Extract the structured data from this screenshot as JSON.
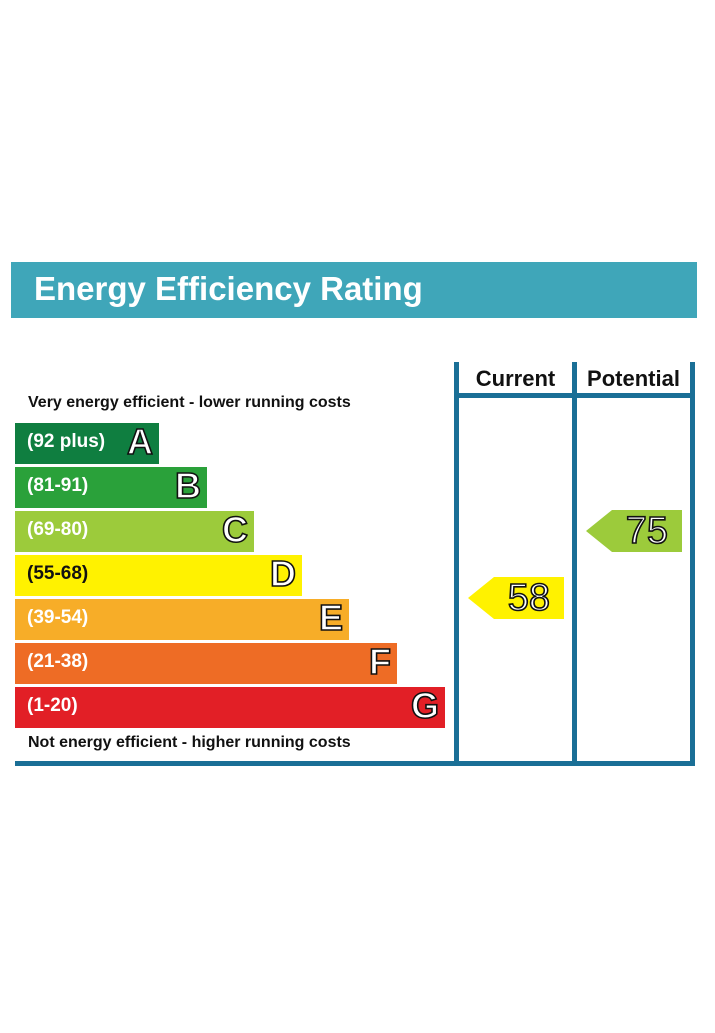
{
  "title": "Energy Efficiency Rating",
  "columns": {
    "current": "Current",
    "potential": "Potential"
  },
  "top_caption": "Very energy efficient - lower running costs",
  "bottom_caption": "Not energy efficient - higher running costs",
  "chart_data": {
    "type": "bar",
    "title": "Energy Efficiency Rating",
    "bands": [
      {
        "letter": "A",
        "range": "(92 plus)",
        "color": "#0f7e40"
      },
      {
        "letter": "B",
        "range": "(81-91)",
        "color": "#2aa13a"
      },
      {
        "letter": "C",
        "range": "(69-80)",
        "color": "#9ccb3b"
      },
      {
        "letter": "D",
        "range": "(55-68)",
        "color": "#fff200"
      },
      {
        "letter": "E",
        "range": "(39-54)",
        "color": "#f7ad28"
      },
      {
        "letter": "F",
        "range": "(21-38)",
        "color": "#ee6c25"
      },
      {
        "letter": "G",
        "range": "(1-20)",
        "color": "#e21f26"
      }
    ],
    "current": {
      "value": "58",
      "band": "D",
      "color": "#fff200"
    },
    "potential": {
      "value": "75",
      "band": "C",
      "color": "#9ccb3b"
    }
  }
}
